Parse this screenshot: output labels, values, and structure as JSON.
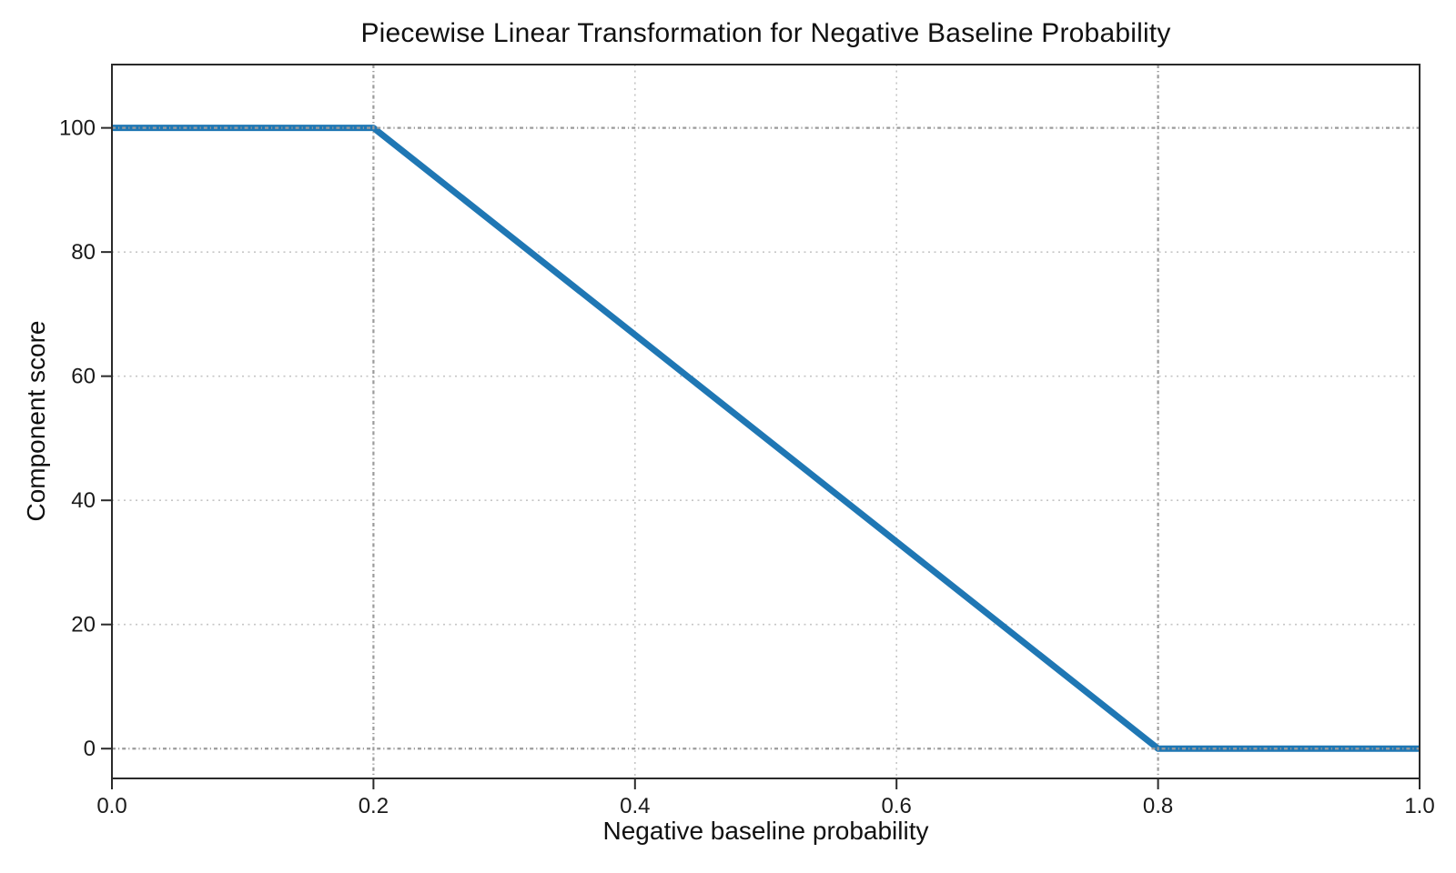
{
  "chart_data": {
    "type": "line",
    "title": "Piecewise Linear Transformation for Negative Baseline Probability",
    "xlabel": "Negative baseline probability",
    "ylabel": "Component score",
    "xlim": [
      0.0,
      1.0
    ],
    "ylim": [
      -4.8,
      110.2
    ],
    "x_ticks": [
      0.0,
      0.2,
      0.4,
      0.6,
      0.8,
      1.0
    ],
    "x_tick_labels": [
      "0.0",
      "0.2",
      "0.4",
      "0.6",
      "0.8",
      "1.0"
    ],
    "y_ticks": [
      0,
      20,
      40,
      60,
      80,
      100
    ],
    "y_tick_labels": [
      "0",
      "20",
      "40",
      "60",
      "80",
      "100"
    ],
    "series": [
      {
        "name": "component_score",
        "color": "#1f77b4",
        "line_width": 7,
        "points": [
          [
            0.0,
            100
          ],
          [
            0.2,
            100
          ],
          [
            0.8,
            0
          ],
          [
            1.0,
            0
          ]
        ]
      }
    ],
    "grid": {
      "show": true,
      "style": "dotted",
      "color": "#c6c6c6",
      "x_lines": [
        0.4,
        0.6
      ],
      "y_lines": [
        20,
        40,
        60,
        80
      ]
    },
    "reference_lines": {
      "style": "dash-dot",
      "color": "#9b9b9b",
      "x_lines": [
        0.2,
        0.8
      ],
      "y_lines": [
        0,
        100
      ]
    },
    "legend": "none",
    "colors": {
      "line": "#1f77b4",
      "spine": "#2a2a2a",
      "tick_text": "#1a1a1a",
      "background": "#ffffff"
    }
  }
}
